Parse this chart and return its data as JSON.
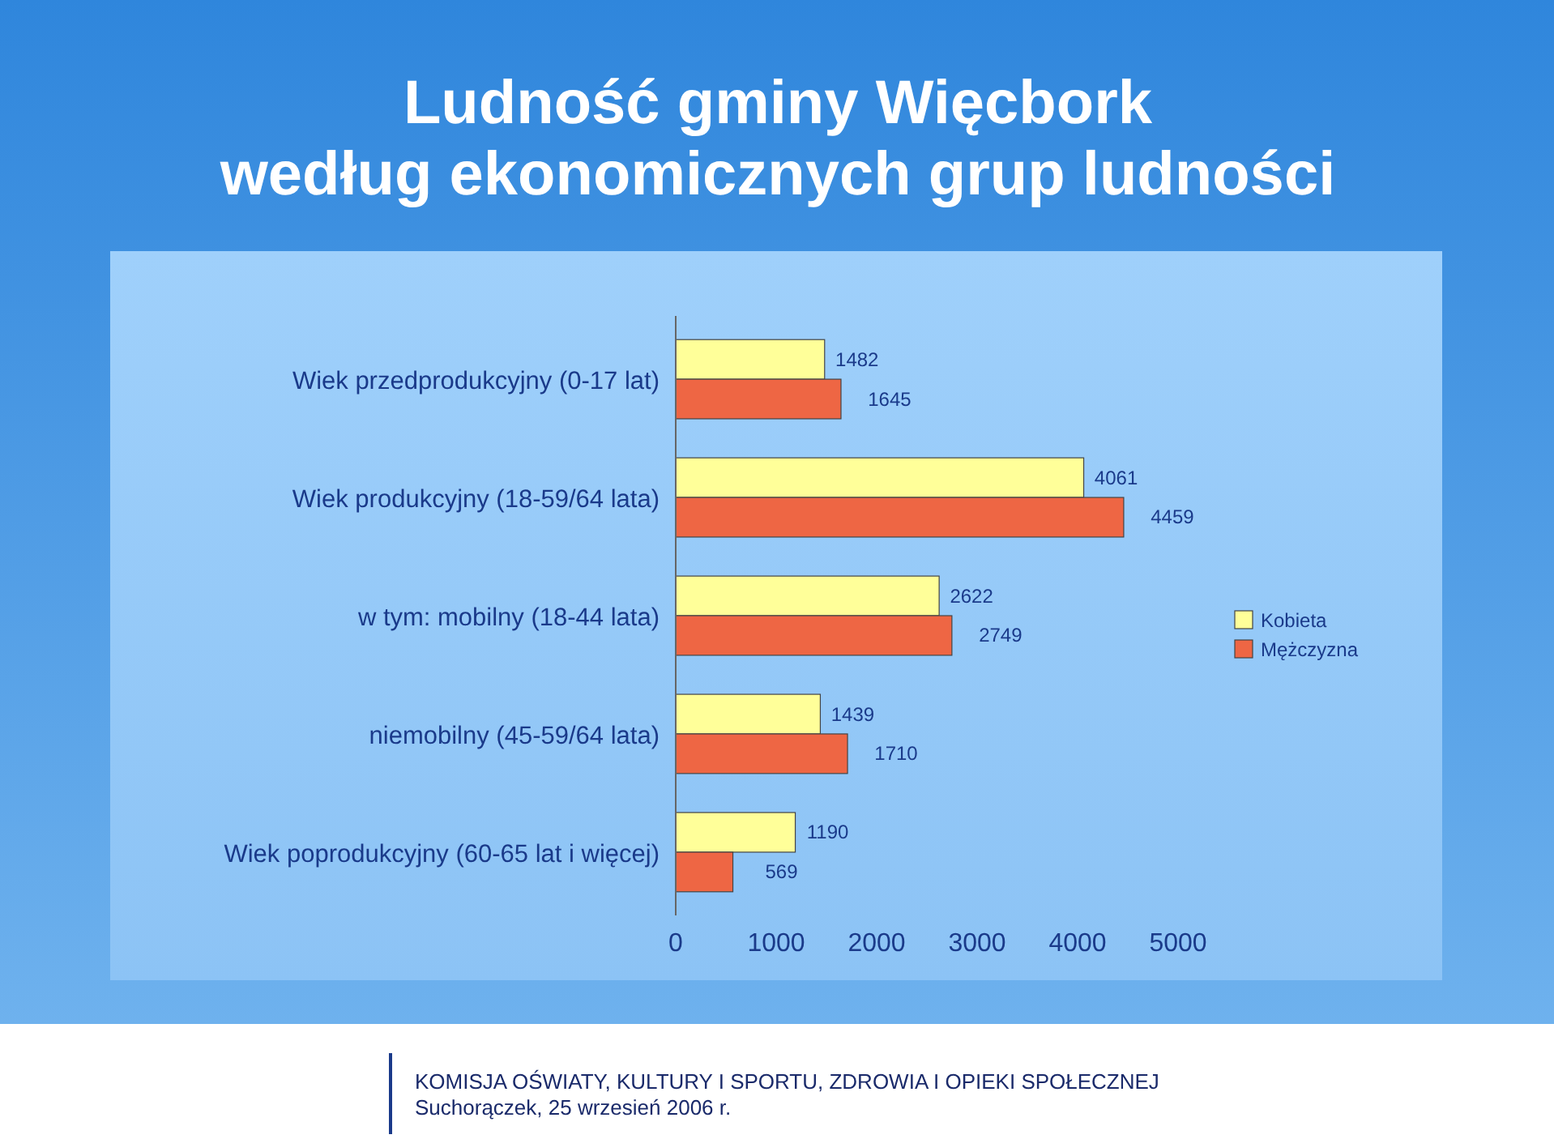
{
  "chart_data": {
    "type": "bar",
    "orientation": "horizontal",
    "title": "Ludność gminy Więcbork\nwedług ekonomicznych grup ludności",
    "categories": [
      "Wiek przedprodukcyjny (0-17 lat)",
      "Wiek produkcyjny (18-59/64 lata)",
      "w tym: mobilny (18-44 lata)",
      "niemobilny (45-59/64 lata)",
      "Wiek poprodukcyjny (60-65 lat i więcej)"
    ],
    "series": [
      {
        "name": "Kobieta",
        "color": "#ffff99",
        "values": [
          1482,
          4061,
          2622,
          1439,
          1190
        ]
      },
      {
        "name": "Mężczyzna",
        "color": "#ee6644",
        "values": [
          1645,
          4459,
          2749,
          1710,
          569
        ]
      }
    ],
    "xlim": [
      0,
      5000
    ],
    "xticks": [
      0,
      1000,
      2000,
      3000,
      4000,
      5000
    ],
    "data_labels": true,
    "legend": "right",
    "grid": false,
    "annotations": [
      "KOMISJA OŚWIATY, KULTURY I SPORTU, ZDROWIA I OPIEKI SPOŁECZNEJ",
      "Suchorączek, 25 wrzesień 2006 r."
    ]
  }
}
